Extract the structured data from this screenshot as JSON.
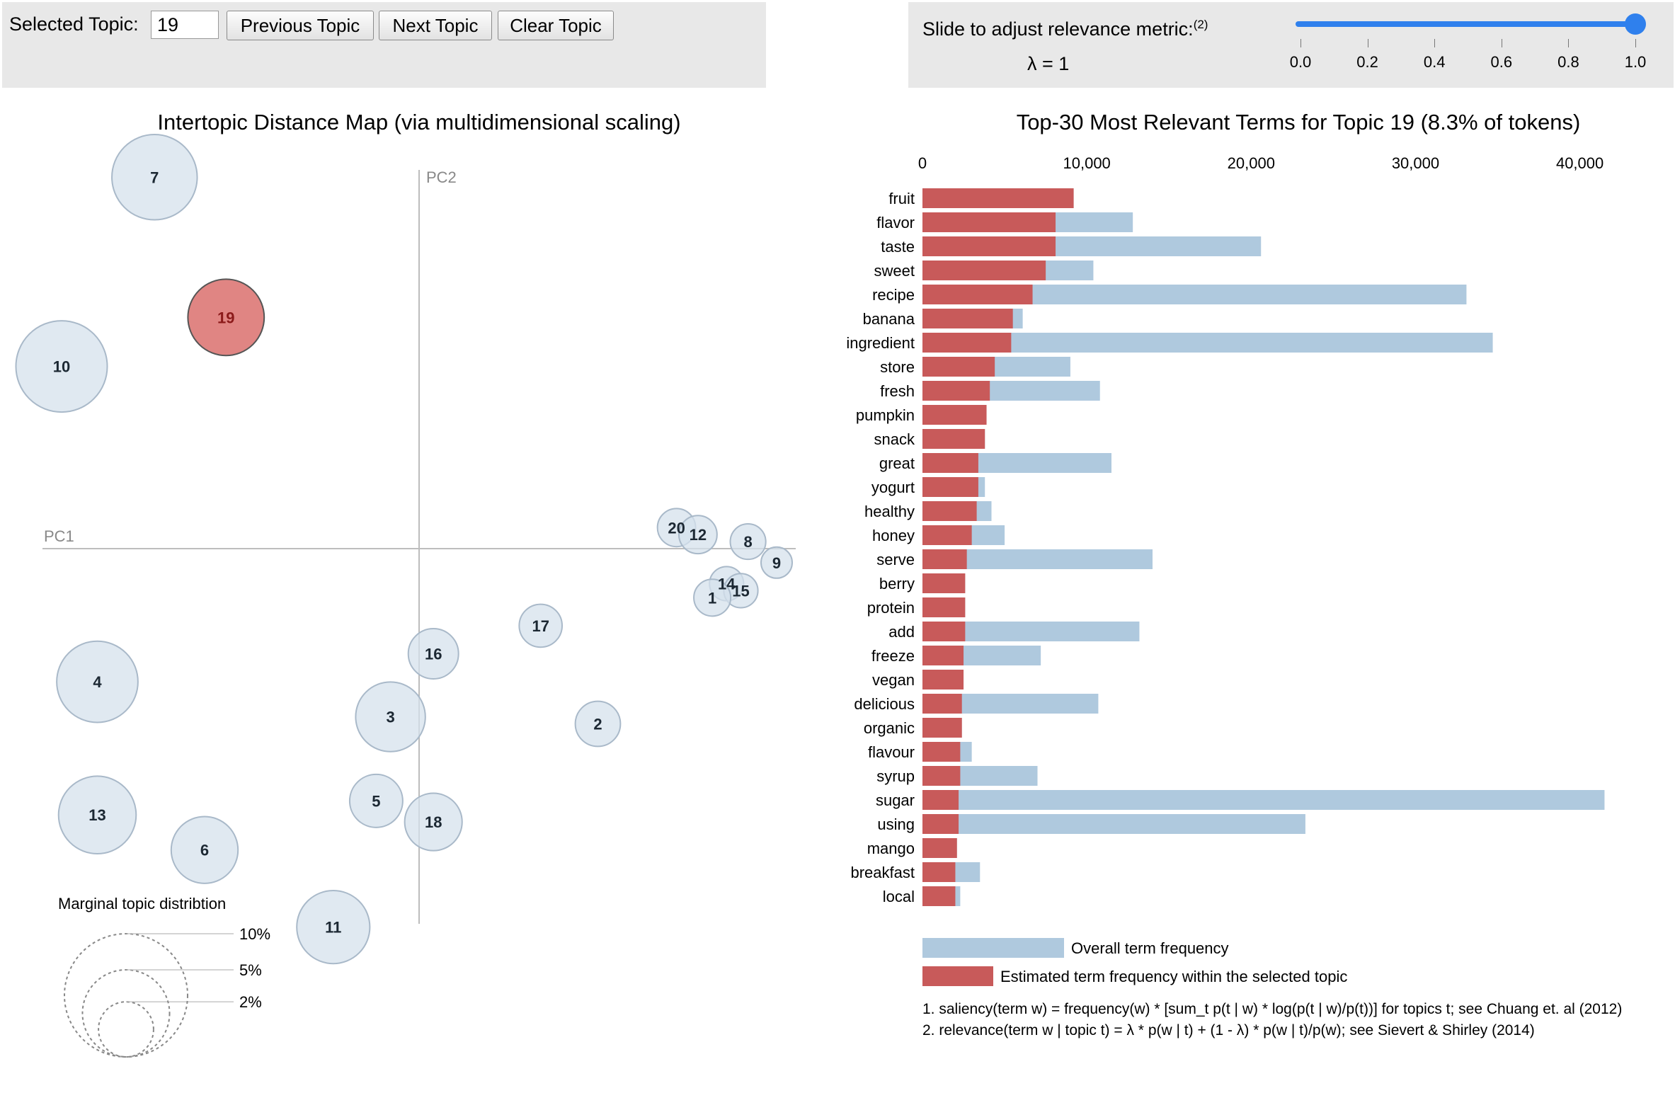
{
  "controls": {
    "selected_topic_label": "Selected Topic:",
    "selected_topic_value": "19",
    "prev_label": "Previous Topic",
    "next_label": "Next Topic",
    "clear_label": "Clear Topic",
    "slider_label": "Slide to adjust relevance metric:",
    "slider_footnote": "(2)",
    "lambda_text": "λ = 1",
    "lambda_value": 1,
    "slider_ticks": [
      "0.0",
      "0.2",
      "0.4",
      "0.6",
      "0.8",
      "1.0"
    ]
  },
  "colors": {
    "topic_fill": "#d6e1ec",
    "topic_stroke": "#a9b9c9",
    "selected_fill": "#e08583",
    "selected_stroke": "#555555",
    "overall_bar": "#afc9de",
    "topic_bar": "#c85a5a",
    "slider": "#2f80ed"
  },
  "chart_data": [
    {
      "type": "scatter",
      "title": "Intertopic Distance Map (via multidimensional scaling)",
      "xlabel": "PC1",
      "ylabel": "PC2",
      "selected_topic": "19",
      "topics": [
        {
          "id": "7",
          "x": -0.37,
          "y": 0.53,
          "size": 7.5
        },
        {
          "id": "19",
          "x": -0.27,
          "y": 0.33,
          "size": 6.0
        },
        {
          "id": "10",
          "x": -0.5,
          "y": 0.26,
          "size": 8.6
        },
        {
          "id": "20",
          "x": 0.36,
          "y": 0.03,
          "size": 1.5
        },
        {
          "id": "12",
          "x": 0.39,
          "y": 0.02,
          "size": 1.5
        },
        {
          "id": "8",
          "x": 0.46,
          "y": 0.01,
          "size": 1.3
        },
        {
          "id": "9",
          "x": 0.5,
          "y": -0.02,
          "size": 1.0
        },
        {
          "id": "14",
          "x": 0.43,
          "y": -0.05,
          "size": 1.2
        },
        {
          "id": "15",
          "x": 0.45,
          "y": -0.06,
          "size": 1.2
        },
        {
          "id": "1",
          "x": 0.41,
          "y": -0.07,
          "size": 1.4
        },
        {
          "id": "17",
          "x": 0.17,
          "y": -0.11,
          "size": 1.9
        },
        {
          "id": "16",
          "x": 0.02,
          "y": -0.15,
          "size": 2.6
        },
        {
          "id": "2",
          "x": 0.25,
          "y": -0.25,
          "size": 2.1
        },
        {
          "id": "3",
          "x": -0.04,
          "y": -0.24,
          "size": 5.0
        },
        {
          "id": "4",
          "x": -0.45,
          "y": -0.19,
          "size": 6.8
        },
        {
          "id": "5",
          "x": -0.06,
          "y": -0.36,
          "size": 2.9
        },
        {
          "id": "18",
          "x": 0.02,
          "y": -0.39,
          "size": 3.4
        },
        {
          "id": "13",
          "x": -0.45,
          "y": -0.38,
          "size": 6.2
        },
        {
          "id": "6",
          "x": -0.3,
          "y": -0.43,
          "size": 4.6
        },
        {
          "id": "11",
          "x": -0.12,
          "y": -0.54,
          "size": 5.5
        }
      ],
      "legend": {
        "title": "Marginal topic distribtion",
        "items": [
          {
            "label": "2%",
            "value": 0.02
          },
          {
            "label": "5%",
            "value": 0.05
          },
          {
            "label": "10%",
            "value": 0.1
          }
        ]
      }
    },
    {
      "type": "bar",
      "title": "Top-30 Most Relevant Terms for Topic 19 (8.3% of tokens)",
      "xlim": [
        0,
        42000
      ],
      "xticks": [
        {
          "value": 0,
          "label": "0"
        },
        {
          "value": 10000,
          "label": "10,000"
        },
        {
          "value": 20000,
          "label": "20,000"
        },
        {
          "value": 30000,
          "label": "30,000"
        },
        {
          "value": 40000,
          "label": "40,000"
        }
      ],
      "terms": [
        "fruit",
        "flavor",
        "taste",
        "sweet",
        "recipe",
        "banana",
        "ingredient",
        "store",
        "fresh",
        "pumpkin",
        "snack",
        "great",
        "yogurt",
        "healthy",
        "honey",
        "serve",
        "berry",
        "protein",
        "add",
        "freeze",
        "vegan",
        "delicious",
        "organic",
        "flavour",
        "syrup",
        "sugar",
        "using",
        "mango",
        "breakfast",
        "local"
      ],
      "series": [
        {
          "name": "Overall term frequency",
          "values": [
            9200,
            12800,
            20600,
            10400,
            33100,
            6100,
            34700,
            9000,
            10800,
            3900,
            3800,
            11500,
            3800,
            4200,
            5000,
            14000,
            2600,
            2600,
            13200,
            7200,
            2500,
            10700,
            2400,
            3000,
            7000,
            41500,
            23300,
            2100,
            3500,
            2300
          ]
        },
        {
          "name": "Estimated term frequency within the selected topic",
          "values": [
            9200,
            8100,
            8100,
            7500,
            6700,
            5500,
            5400,
            4400,
            4100,
            3900,
            3800,
            3400,
            3400,
            3300,
            3000,
            2700,
            2600,
            2600,
            2600,
            2500,
            2500,
            2400,
            2400,
            2300,
            2300,
            2200,
            2200,
            2100,
            2000,
            2000
          ]
        }
      ],
      "legend": [
        "Overall term frequency",
        "Estimated term frequency within the selected topic"
      ]
    }
  ],
  "footnotes": [
    "1. saliency(term w) = frequency(w) * [sum_t p(t | w) * log(p(t | w)/p(t))] for topics t; see Chuang et. al (2012)",
    "2. relevance(term w | topic t) = λ * p(w | t) + (1 - λ) * p(w | t)/p(w); see Sievert & Shirley (2014)"
  ]
}
